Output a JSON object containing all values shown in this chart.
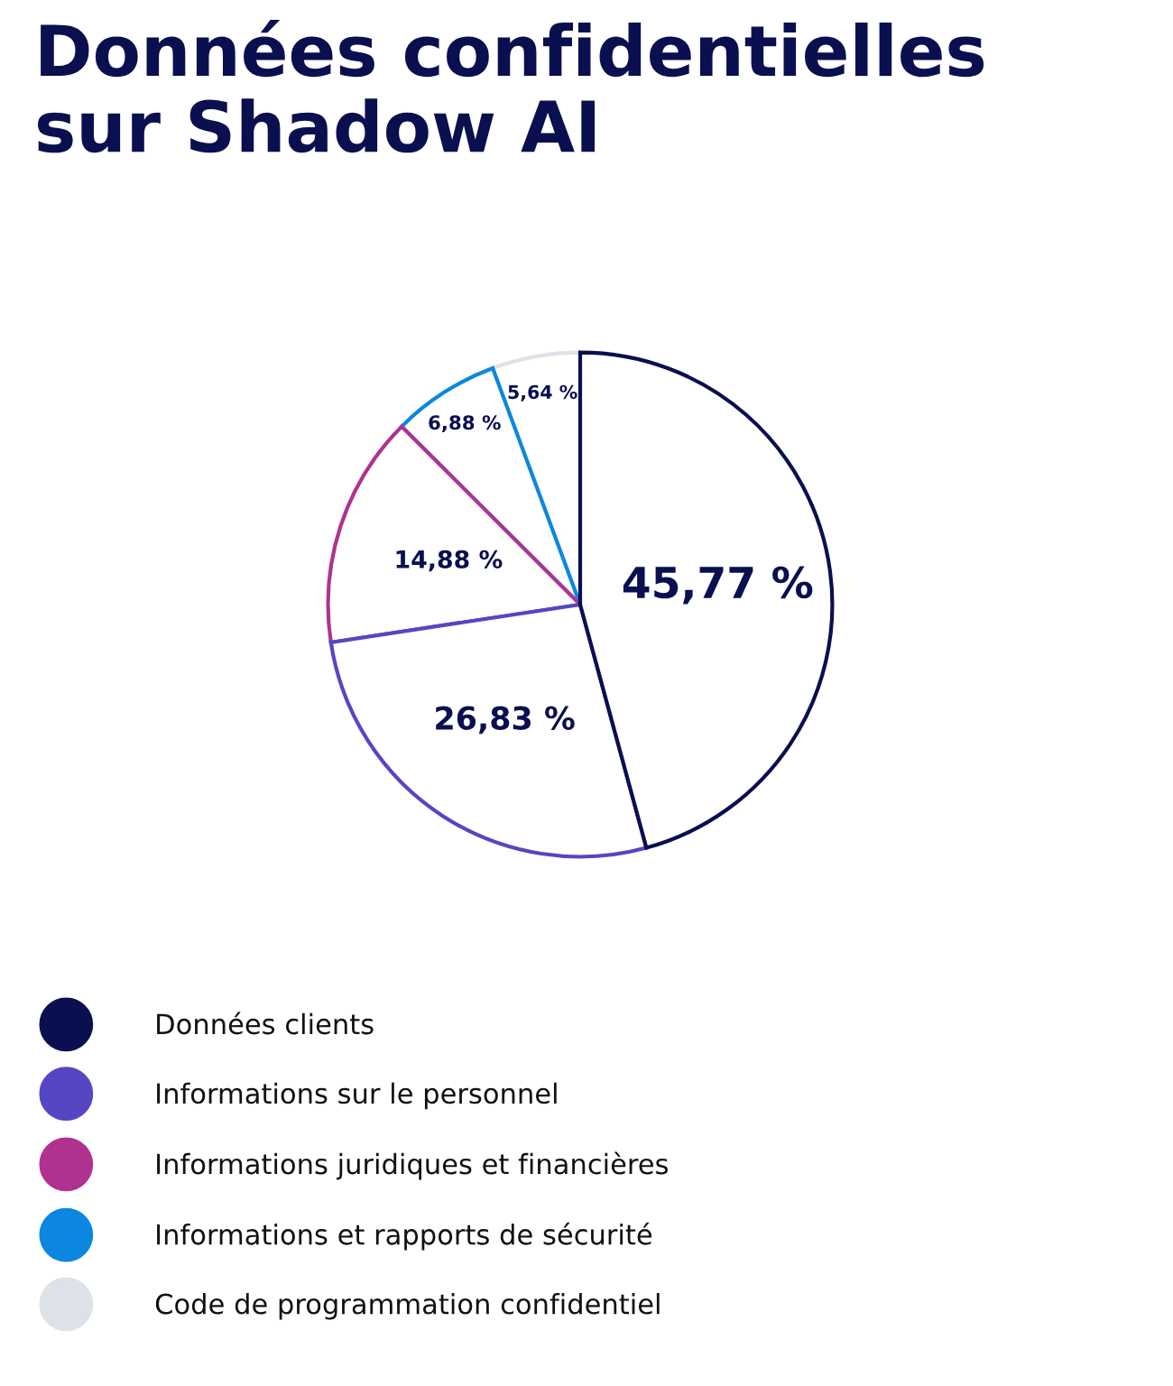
{
  "chart_data": {
    "type": "pie",
    "title": "Données confidentielles\nsur Shadow AI",
    "categories": [
      "Données clients",
      "Informations sur le personnel",
      "Informations juridiques et financières",
      "Informations et rapports de sécurité",
      "Code de programmation confidentiel"
    ],
    "values": [
      45.77,
      26.83,
      14.88,
      6.88,
      5.64
    ],
    "value_labels": [
      "45,77 %",
      "26,83 %",
      "14,88 %",
      "6,88 %",
      "5,64 %"
    ],
    "colors": [
      "#0a0f50",
      "#5546c4",
      "#b03290",
      "#0b87e0",
      "#dde2e8"
    ],
    "legend": "bottom left"
  }
}
